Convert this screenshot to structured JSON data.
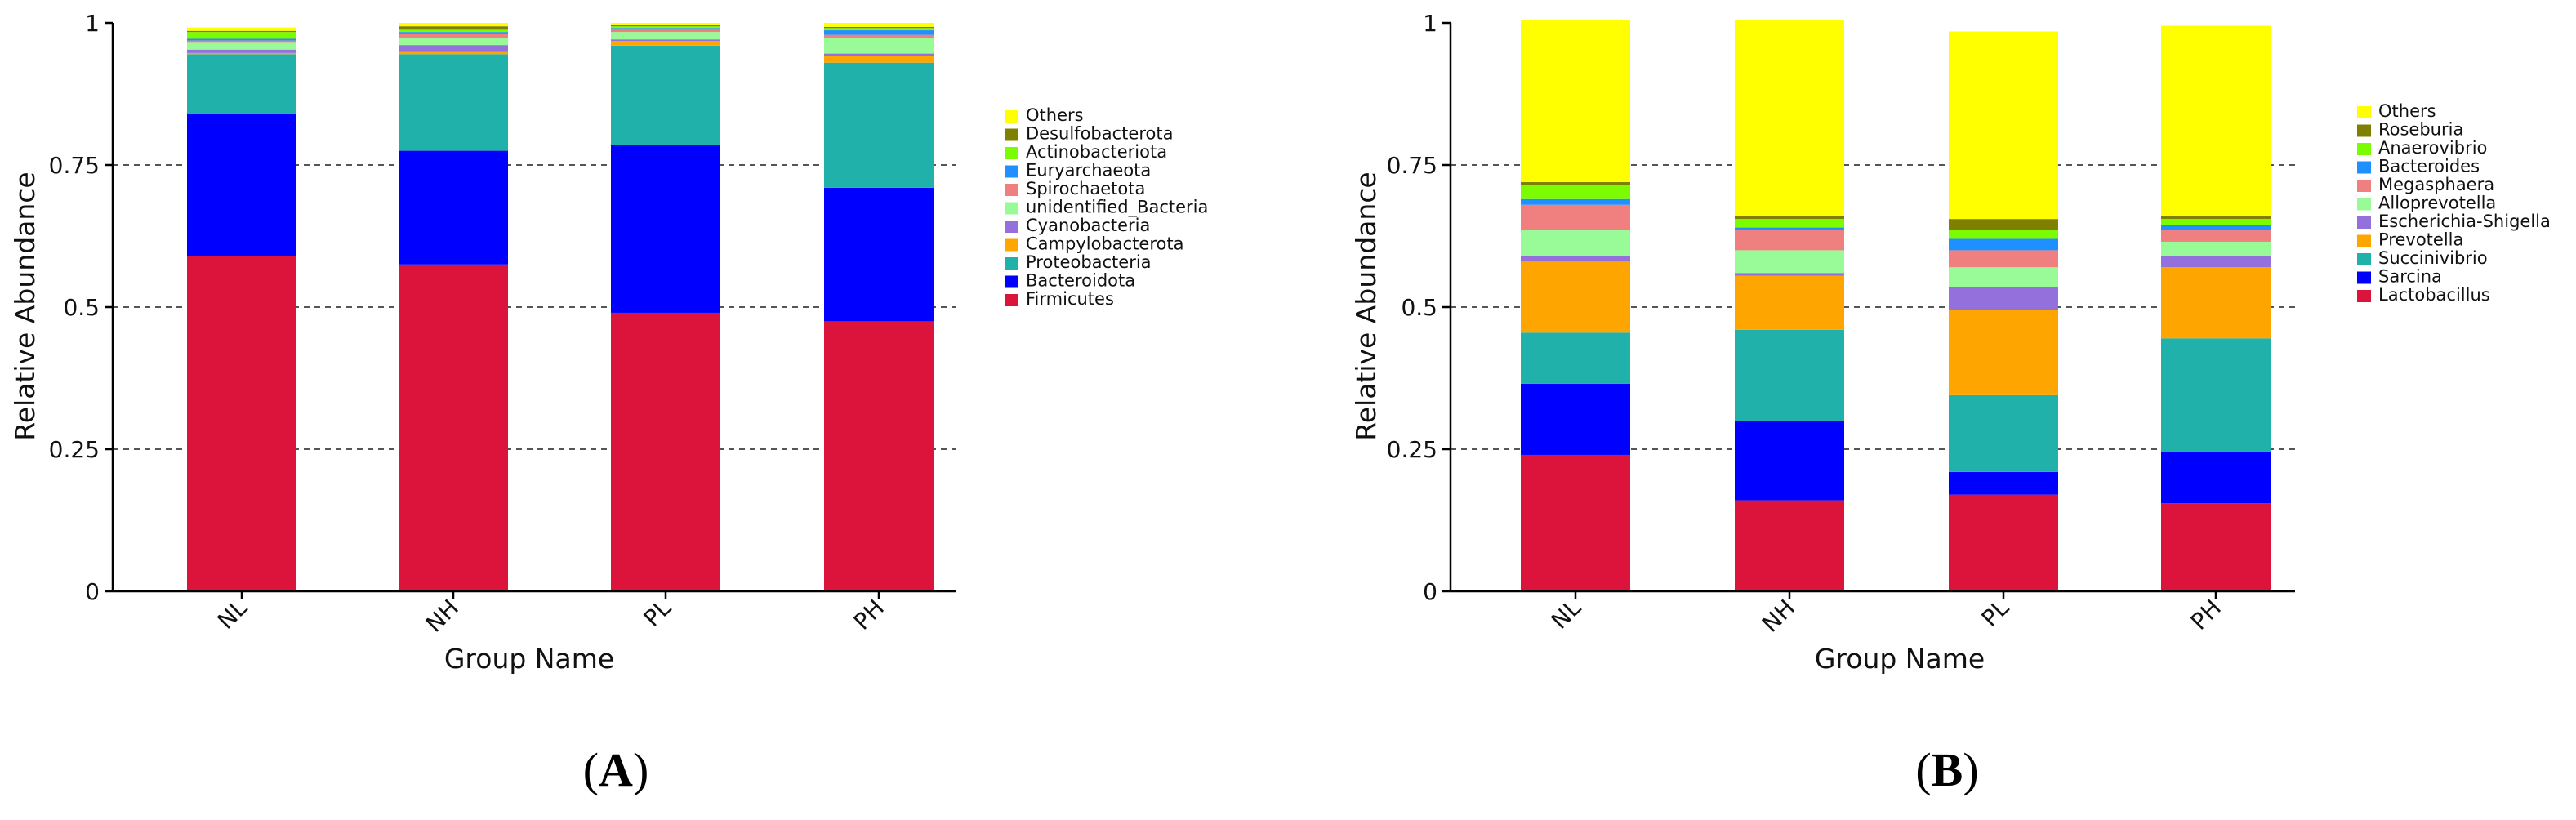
{
  "chart_data": [
    {
      "type": "bar",
      "stacked": true,
      "panel_label": "A",
      "title": "",
      "xlabel": "Group Name",
      "ylabel": "Relative Abundance",
      "ylim": [
        0,
        1
      ],
      "yticks": [
        0,
        0.25,
        0.5,
        0.75,
        1
      ],
      "ytick_labels": [
        "0",
        "0.25",
        "0.5",
        "0.75",
        "1"
      ],
      "grid": "dashed horizontal at 0.25, 0.5, 0.75",
      "legend_position": "right",
      "categories": [
        "NL",
        "NH",
        "PL",
        "PH"
      ],
      "series": [
        {
          "name": "Firmicutes",
          "color": "#dc143c",
          "values": [
            0.59,
            0.575,
            0.49,
            0.475
          ]
        },
        {
          "name": "Bacteroidota",
          "color": "#0000ff",
          "values": [
            0.25,
            0.2,
            0.295,
            0.235
          ]
        },
        {
          "name": "Proteobacteria",
          "color": "#20b2aa",
          "values": [
            0.105,
            0.17,
            0.175,
            0.22
          ]
        },
        {
          "name": "Campylobacterota",
          "color": "#ffa500",
          "values": [
            0.002,
            0.004,
            0.008,
            0.012
          ]
        },
        {
          "name": "Cyanobacteria",
          "color": "#9370db",
          "values": [
            0.006,
            0.012,
            0.003,
            0.004
          ]
        },
        {
          "name": "unidentified_Bacteria",
          "color": "#98fb98",
          "values": [
            0.012,
            0.013,
            0.013,
            0.028
          ]
        },
        {
          "name": "Spirochaetota",
          "color": "#f08080",
          "values": [
            0.004,
            0.006,
            0.004,
            0.005
          ]
        },
        {
          "name": "Euryarchaeota",
          "color": "#1e90ff",
          "values": [
            0.003,
            0.004,
            0.003,
            0.008
          ]
        },
        {
          "name": "Actinobacteriota",
          "color": "#7cfc00",
          "values": [
            0.012,
            0.004,
            0.003,
            0.004
          ]
        },
        {
          "name": "Desulfobacterota",
          "color": "#808000",
          "values": [
            0.002,
            0.006,
            0.002,
            0.002
          ]
        },
        {
          "name": "Others",
          "color": "#ffff00",
          "values": [
            0.006,
            0.006,
            0.004,
            0.007
          ]
        }
      ]
    },
    {
      "type": "bar",
      "stacked": true,
      "panel_label": "B",
      "title": "",
      "xlabel": "Group Name",
      "ylabel": "Relative Abundance",
      "ylim": [
        0,
        1
      ],
      "yticks": [
        0,
        0.25,
        0.5,
        0.75,
        1
      ],
      "ytick_labels": [
        "0",
        "0.25",
        "0.5",
        "0.75",
        "1"
      ],
      "grid": "dashed horizontal at 0.25, 0.5, 0.75",
      "legend_position": "right",
      "categories": [
        "NL",
        "NH",
        "PL",
        "PH"
      ],
      "series": [
        {
          "name": "Lactobacillus",
          "color": "#dc143c",
          "values": [
            0.24,
            0.16,
            0.17,
            0.155
          ]
        },
        {
          "name": "Sarcina",
          "color": "#0000ff",
          "values": [
            0.125,
            0.14,
            0.04,
            0.09
          ]
        },
        {
          "name": "Succinivibrio",
          "color": "#20b2aa",
          "values": [
            0.09,
            0.16,
            0.135,
            0.2
          ]
        },
        {
          "name": "Prevotella",
          "color": "#ffa500",
          "values": [
            0.125,
            0.095,
            0.15,
            0.125
          ]
        },
        {
          "name": "Escherichia-Shigella",
          "color": "#9370db",
          "values": [
            0.01,
            0.005,
            0.04,
            0.02
          ]
        },
        {
          "name": "Alloprevotella",
          "color": "#98fb98",
          "values": [
            0.045,
            0.04,
            0.035,
            0.025
          ]
        },
        {
          "name": "Megasphaera",
          "color": "#f08080",
          "values": [
            0.045,
            0.035,
            0.03,
            0.02
          ]
        },
        {
          "name": "Bacteroides",
          "color": "#1e90ff",
          "values": [
            0.01,
            0.005,
            0.02,
            0.01
          ]
        },
        {
          "name": "Anaerovibrio",
          "color": "#7cfc00",
          "values": [
            0.025,
            0.015,
            0.015,
            0.01
          ]
        },
        {
          "name": "Roseburia",
          "color": "#808000",
          "values": [
            0.005,
            0.005,
            0.02,
            0.005
          ]
        },
        {
          "name": "Others",
          "color": "#ffff00",
          "values": [
            0.285,
            0.345,
            0.33,
            0.335
          ]
        }
      ]
    }
  ]
}
